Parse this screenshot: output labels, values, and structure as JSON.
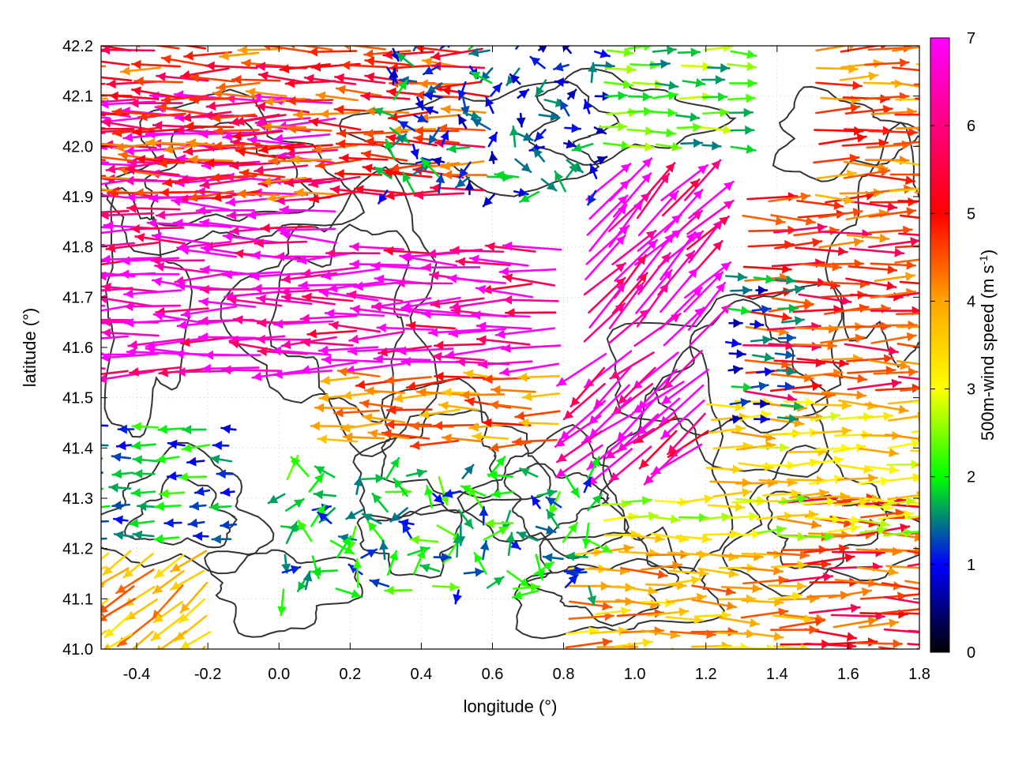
{
  "chart_data": {
    "type": "quiver",
    "title": "",
    "xlabel": "longitude (°)",
    "ylabel": "latitude (°)",
    "xlim": [
      -0.5,
      1.8
    ],
    "ylim": [
      41.0,
      42.2
    ],
    "xticks": [
      "-0.4",
      "-0.2",
      "0.0",
      "0.2",
      "0.4",
      "0.6",
      "0.8",
      "1.0",
      "1.2",
      "1.4",
      "1.6",
      "1.8"
    ],
    "xtick_values": [
      -0.4,
      -0.2,
      0.0,
      0.2,
      0.4,
      0.6,
      0.8,
      1.0,
      1.2,
      1.4,
      1.6,
      1.8
    ],
    "yticks": [
      "41.0",
      "41.1",
      "41.2",
      "41.3",
      "41.4",
      "41.5",
      "41.6",
      "41.7",
      "41.8",
      "41.9",
      "42.0",
      "42.1",
      "42.2"
    ],
    "ytick_values": [
      41.0,
      41.1,
      41.2,
      41.3,
      41.4,
      41.5,
      41.6,
      41.7,
      41.8,
      41.9,
      42.0,
      42.1,
      42.2
    ],
    "grid": "dotted",
    "colorbar": {
      "label": "500m-wind speed (m s",
      "label_sup": "-1",
      "label_end": ")",
      "range": [
        0,
        7
      ],
      "ticks": [
        "0",
        "1",
        "2",
        "3",
        "4",
        "5",
        "6",
        "7"
      ],
      "tick_values": [
        0,
        1,
        2,
        3,
        4,
        5,
        6,
        7
      ],
      "colors": [
        "#000000",
        "#0000ff",
        "#00ff00",
        "#ffff00",
        "#ffa500",
        "#ff0000",
        "#ff00ff"
      ]
    },
    "contour_color": "#333333",
    "wind_regions": [
      {
        "lon": [
          -0.5,
          0.2
        ],
        "lat": [
          41.55,
          42.1
        ],
        "speed": 6.9,
        "dir": "westward"
      },
      {
        "lon": [
          0.2,
          0.8
        ],
        "lat": [
          41.55,
          41.8
        ],
        "speed": 6.8,
        "dir": "westward"
      },
      {
        "lon": [
          0.85,
          1.2
        ],
        "lat": [
          41.6,
          41.9
        ],
        "speed": 6.9,
        "dir": "northeastward"
      },
      {
        "lon": [
          0.9,
          1.2
        ],
        "lat": [
          41.4,
          41.6
        ],
        "speed": 6.8,
        "dir": "southwestward"
      },
      {
        "lon": [
          -0.5,
          0.6
        ],
        "lat": [
          41.9,
          42.2
        ],
        "speed": 5.5,
        "dir": "westward"
      },
      {
        "lon": [
          0.2,
          0.8
        ],
        "lat": [
          41.4,
          41.55
        ],
        "speed": 5.0,
        "dir": "westward"
      },
      {
        "lon": [
          1.3,
          1.8
        ],
        "lat": [
          41.5,
          41.9
        ],
        "speed": 5.5,
        "dir": "eastward"
      },
      {
        "lon": [
          1.4,
          1.8
        ],
        "lat": [
          41.0,
          41.3
        ],
        "speed": 5.5,
        "dir": "eastward"
      },
      {
        "lon": [
          0.8,
          1.4
        ],
        "lat": [
          41.0,
          41.2
        ],
        "speed": 4.5,
        "dir": "eastward"
      },
      {
        "lon": [
          1.2,
          1.8
        ],
        "lat": [
          41.3,
          41.5
        ],
        "speed": 4.0,
        "dir": "eastward"
      },
      {
        "lon": [
          1.5,
          1.8
        ],
        "lat": [
          41.9,
          42.2
        ],
        "speed": 5.0,
        "dir": "eastward"
      },
      {
        "lon": [
          0.3,
          0.9
        ],
        "lat": [
          41.9,
          42.2
        ],
        "speed": 1.5,
        "dir": "variable"
      },
      {
        "lon": [
          0.9,
          1.3
        ],
        "lat": [
          42.0,
          42.2
        ],
        "speed": 2.5,
        "dir": "eastward"
      },
      {
        "lon": [
          -0.5,
          -0.1
        ],
        "lat": [
          41.2,
          41.45
        ],
        "speed": 1.8,
        "dir": "westward"
      },
      {
        "lon": [
          0.0,
          0.9
        ],
        "lat": [
          41.1,
          41.35
        ],
        "speed": 2.0,
        "dir": "variable"
      },
      {
        "lon": [
          -0.5,
          -0.2
        ],
        "lat": [
          41.0,
          41.2
        ],
        "speed": 4.5,
        "dir": "southwestward"
      },
      {
        "lon": [
          1.25,
          1.45
        ],
        "lat": [
          41.45,
          41.75
        ],
        "speed": 1.5,
        "dir": "eastward"
      },
      {
        "lon": [
          0.9,
          1.8
        ],
        "lat": [
          41.2,
          41.3
        ],
        "speed": 3.5,
        "dir": "eastward"
      }
    ]
  }
}
